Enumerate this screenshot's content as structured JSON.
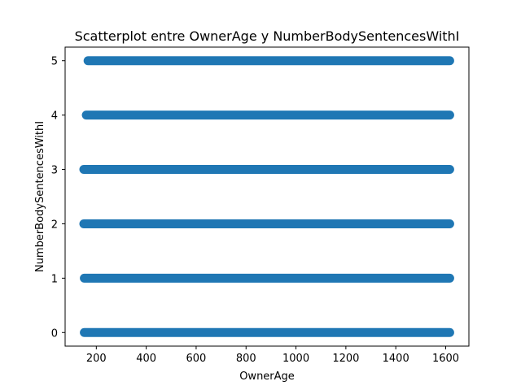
{
  "chart_data": {
    "type": "scatter",
    "title": "Scatterplot entre OwnerAge y NumberBodySentencesWithI",
    "xlabel": "OwnerAge",
    "ylabel": "NumberBodySentencesWithI",
    "xlim": [
      75,
      1693
    ],
    "ylim": [
      -0.25,
      5.25
    ],
    "xticks": [
      200,
      400,
      600,
      800,
      1000,
      1200,
      1400,
      1600
    ],
    "yticks": [
      0,
      1,
      2,
      3,
      4,
      5
    ],
    "grid": false,
    "marker_color": "#1f77b4",
    "series": [
      {
        "values": [
          {
            "y": 0,
            "x_min": 152,
            "x_max": 1616
          },
          {
            "y": 1,
            "x_min": 152,
            "x_max": 1616
          },
          {
            "y": 2,
            "x_min": 150,
            "x_max": 1616
          },
          {
            "y": 3,
            "x_min": 150,
            "x_max": 1616
          },
          {
            "y": 4,
            "x_min": 160,
            "x_max": 1616
          },
          {
            "y": 5,
            "x_min": 167,
            "x_max": 1616
          }
        ]
      }
    ]
  }
}
